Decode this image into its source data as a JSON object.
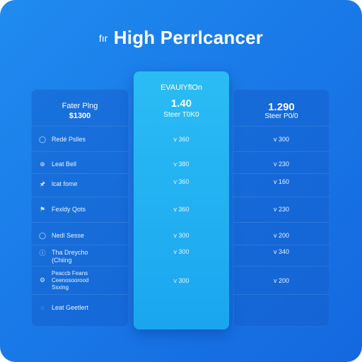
{
  "title": {
    "prefix": "fır",
    "main": "High Perrlcancer"
  },
  "columns": {
    "left": {
      "name": "Fater Plng",
      "price": "$1300"
    },
    "middle": {
      "name": "EVAUlYflOn",
      "price": "1.40",
      "sub": "Steer T0K0"
    },
    "right": {
      "price": "1.290",
      "sub": "Steer P0/0"
    }
  },
  "rows": [
    {
      "icon": "circle-check-icon",
      "glyph": "◯",
      "label": "Redé Pslles",
      "mid": "v 360",
      "right": "v 300"
    },
    {
      "icon": "circle-plus-icon",
      "glyph": "⊕",
      "label": "Leat Bell",
      "mid": "v 380",
      "right": "v 230"
    },
    {
      "icon": "pin-icon",
      "glyph": "🖈",
      "label": "lcat fome",
      "mid": "v 360",
      "right": "v 160"
    },
    {
      "icon": "flag-icon",
      "glyph": "⚑",
      "label": "Fexldy Qots",
      "mid": "v 360",
      "right": "v 230"
    },
    {
      "icon": "circle-icon",
      "glyph": "◯",
      "label": "Nedl Sesse",
      "mid": "v 300",
      "right": "v 200"
    },
    {
      "icon": "info-icon",
      "glyph": "ⓘ",
      "label": "Tha Dreycho (Chiing",
      "mid": "v 300",
      "right": "v 340"
    },
    {
      "icon": "settings-icon",
      "glyph": "⚙",
      "label": "Peaccb Feans Ceenosoorood Ssxing",
      "mid": "v 300",
      "right": "v 200"
    },
    {
      "icon": "chat-icon",
      "glyph": "◌",
      "label": "Leat Geetlert",
      "mid": "",
      "right": ""
    }
  ],
  "colors": {
    "background": "#1a7ae8",
    "highlight": "#1aa6ef",
    "text": "#ffffff"
  }
}
